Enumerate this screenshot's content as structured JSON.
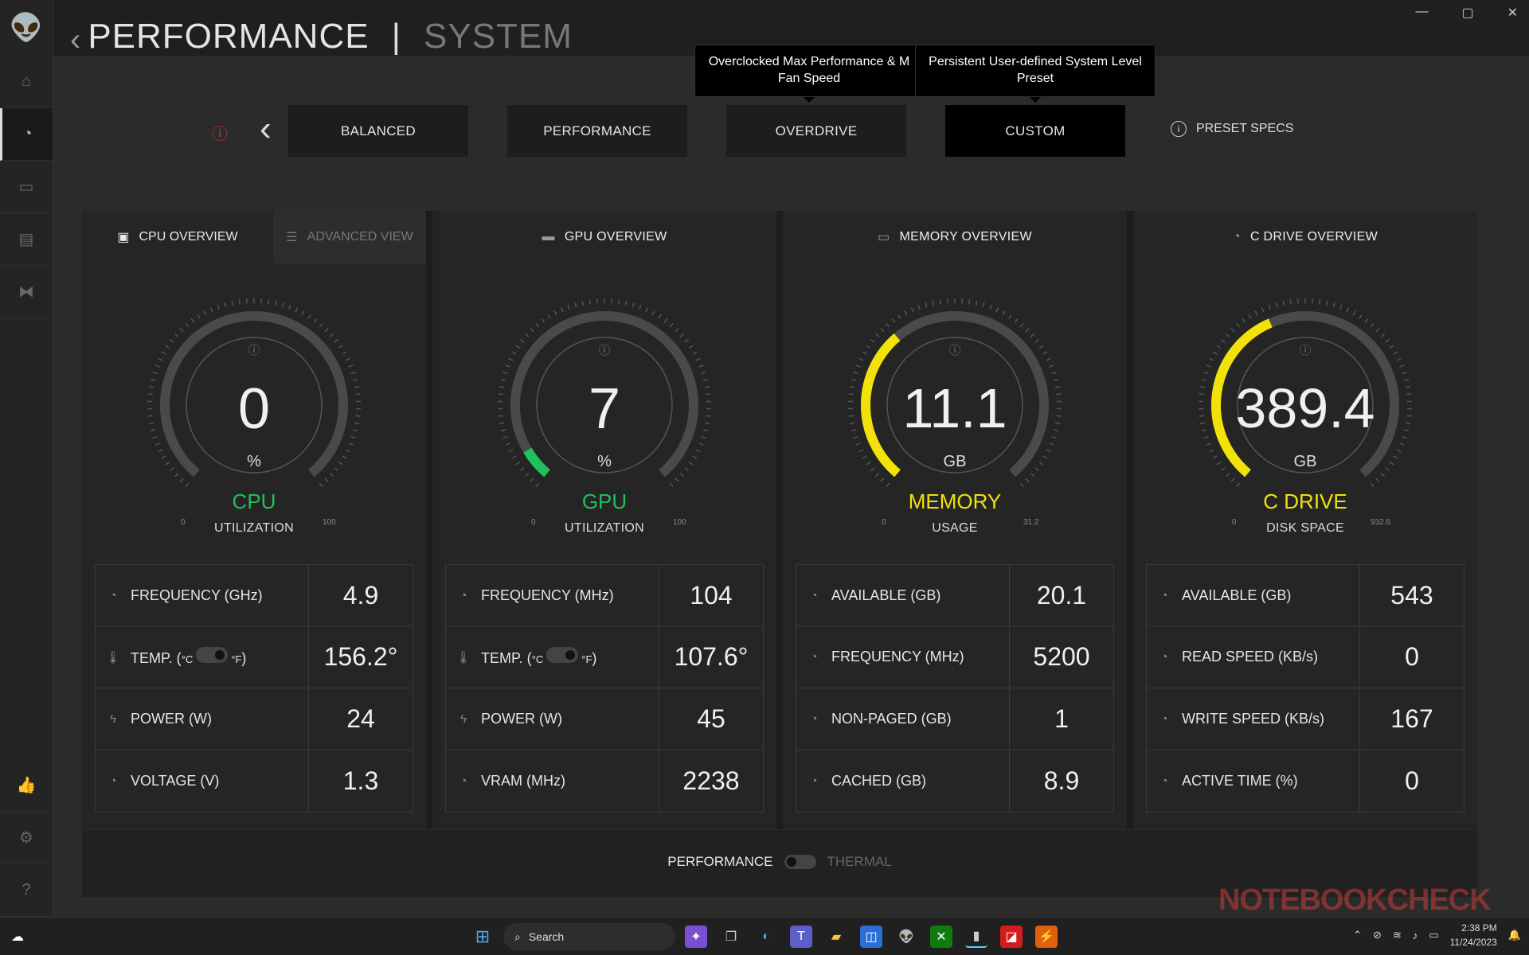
{
  "window": {
    "title_main": "PERFORMANCE",
    "title_sep": "|",
    "title_sub": "SYSTEM",
    "minimize": "—",
    "maximize": "▢",
    "close": "✕"
  },
  "sidebar": {
    "logo_icon": "alien-head-icon",
    "items": [
      "home-icon",
      "gauge-icon",
      "monitor-icon",
      "library-icon",
      "fx-icon"
    ],
    "bottom": [
      "thumbs-up-icon",
      "gear-icon",
      "help-icon"
    ]
  },
  "presets": {
    "items": [
      {
        "label": "BALANCED"
      },
      {
        "label": "PERFORMANCE"
      },
      {
        "label": "OVERDRIVE"
      },
      {
        "label": "CUSTOM"
      }
    ],
    "selected": "CUSTOM",
    "specs_label": "PRESET SPECS",
    "tooltip_overdrive": "Overclocked Max Performance & M",
    "tooltip_overdrive_2": "Fan Speed",
    "tooltip_custom": "Persistent User-defined System Level",
    "tooltip_custom_2": "Preset"
  },
  "cpu": {
    "tab": "CPU OVERVIEW",
    "tab2": "ADVANCED VIEW",
    "value": "0",
    "unit": "%",
    "label": "CPU",
    "sub": "UTILIZATION",
    "min": "0",
    "max": "100",
    "fraction": 0,
    "color": "#20c05a",
    "rows": [
      {
        "label": "FREQUENCY (GHz)",
        "value": "4.9"
      },
      {
        "label": "TEMP. (",
        "value": "156.2°"
      },
      {
        "label": "POWER (W)",
        "value": "24"
      },
      {
        "label": "VOLTAGE (V)",
        "value": "1.3"
      }
    ]
  },
  "gpu": {
    "tab": "GPU OVERVIEW",
    "value": "7",
    "unit": "%",
    "label": "GPU",
    "sub": "UTILIZATION",
    "min": "0",
    "max": "100",
    "fraction": 0.07,
    "color": "#20c05a",
    "rows": [
      {
        "label": "FREQUENCY (MHz)",
        "value": "104"
      },
      {
        "label": "TEMP. (",
        "value": "107.6°"
      },
      {
        "label": "POWER (W)",
        "value": "45"
      },
      {
        "label": "VRAM (MHz)",
        "value": "2238"
      }
    ]
  },
  "memory": {
    "tab": "MEMORY OVERVIEW",
    "value": "11.1",
    "unit": "GB",
    "label": "MEMORY",
    "sub": "USAGE",
    "min": "0",
    "max": "31.2",
    "fraction": 0.356,
    "color": "#f2e20a",
    "rows": [
      {
        "label": "AVAILABLE (GB)",
        "value": "20.1"
      },
      {
        "label": "FREQUENCY (MHz)",
        "value": "5200"
      },
      {
        "label": "NON-PAGED (GB)",
        "value": "1"
      },
      {
        "label": "CACHED (GB)",
        "value": "8.9"
      }
    ]
  },
  "drive": {
    "tab": "C DRIVE OVERVIEW",
    "value": "389.4",
    "unit": "GB",
    "label": "C DRIVE",
    "sub": "DISK SPACE",
    "min": "0",
    "max": "932.6",
    "fraction": 0.418,
    "color": "#f2e20a",
    "rows": [
      {
        "label": "AVAILABLE (GB)",
        "value": "543"
      },
      {
        "label": "READ SPEED (KB/s)",
        "value": "0"
      },
      {
        "label": "WRITE SPEED (KB/s)",
        "value": "167"
      },
      {
        "label": "ACTIVE TIME (%)",
        "value": "0"
      }
    ]
  },
  "temp_units": {
    "c": "°C",
    "f": "°F",
    "close": ")"
  },
  "footer": {
    "left": "PERFORMANCE",
    "right": "THERMAL"
  },
  "taskbar": {
    "search": "Search",
    "time": "2:38 PM",
    "date": "11/24/2023"
  },
  "watermark": "NOTEBOOKCHECK"
}
